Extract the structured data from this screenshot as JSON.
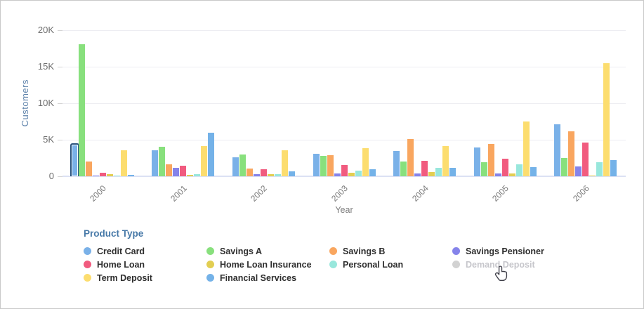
{
  "chart_data": {
    "type": "bar",
    "title": "",
    "xlabel": "Year",
    "ylabel": "Customers",
    "ylim": [
      0,
      20000
    ],
    "ytick_step": 5000,
    "ytick_labels": [
      "0",
      "5K",
      "10K",
      "15K",
      "20K"
    ],
    "grid": "horizontal",
    "categories": [
      "2000",
      "2001",
      "2002",
      "2003",
      "2004",
      "2005",
      "2006"
    ],
    "series": [
      {
        "name": "Credit Card",
        "color": "#7ab1e8",
        "values": [
          4300,
          3600,
          2600,
          3100,
          3500,
          3900,
          7100
        ],
        "selected_categories": [
          "2000"
        ]
      },
      {
        "name": "Savings A",
        "color": "#88e07d",
        "values": [
          18100,
          4000,
          3000,
          2800,
          2000,
          1900,
          2500
        ]
      },
      {
        "name": "Savings B",
        "color": "#f9a65f",
        "values": [
          2000,
          1600,
          1100,
          2900,
          5100,
          4400,
          6200
        ]
      },
      {
        "name": "Savings Pensioner",
        "color": "#8583ea",
        "values": [
          50,
          1150,
          250,
          400,
          400,
          400,
          1300
        ]
      },
      {
        "name": "Home Loan",
        "color": "#f15b7f",
        "values": [
          450,
          1400,
          1000,
          1500,
          2100,
          2400,
          4600
        ]
      },
      {
        "name": "Home Loan Insurance",
        "color": "#e2ce52",
        "values": [
          250,
          150,
          300,
          450,
          600,
          350,
          100
        ]
      },
      {
        "name": "Personal Loan",
        "color": "#98e7dc",
        "values": [
          50,
          250,
          300,
          800,
          1200,
          1650,
          1900
        ]
      },
      {
        "name": "Term Deposit",
        "color": "#fcdd6f",
        "values": [
          3600,
          4100,
          3600,
          3800,
          4100,
          7500,
          15500
        ]
      },
      {
        "name": "Financial Services",
        "color": "#74b2e8",
        "values": [
          150,
          6000,
          700,
          1000,
          1200,
          1250,
          2200
        ]
      }
    ],
    "legend_position": "bottom"
  },
  "axes": {
    "y_title": "Customers",
    "x_title": "Year"
  },
  "legend": {
    "title": "Product Type",
    "items": [
      {
        "label": "Credit Card",
        "color": "#7ab1e8",
        "disabled": false
      },
      {
        "label": "Savings A",
        "color": "#88e07d",
        "disabled": false
      },
      {
        "label": "Savings B",
        "color": "#f9a65f",
        "disabled": false
      },
      {
        "label": "Savings Pensioner",
        "color": "#8583ea",
        "disabled": false
      },
      {
        "label": "Home Loan",
        "color": "#f15b7f",
        "disabled": false
      },
      {
        "label": "Home Loan Insurance",
        "color": "#e2ce52",
        "disabled": false
      },
      {
        "label": "Personal Loan",
        "color": "#98e7dc",
        "disabled": false
      },
      {
        "label": "Demand Deposit",
        "color": "#d2d2d2",
        "disabled": true
      },
      {
        "label": "Term Deposit",
        "color": "#fcdd6f",
        "disabled": false
      },
      {
        "label": "Financial Services",
        "color": "#74b2e8",
        "disabled": false
      }
    ]
  }
}
